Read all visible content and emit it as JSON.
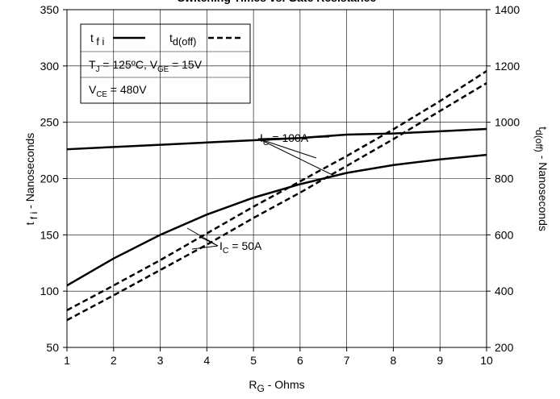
{
  "chart_data": {
    "type": "line",
    "title": "Switching Times vs. Gate Resistance",
    "x": [
      1,
      2,
      3,
      4,
      5,
      6,
      7,
      8,
      9,
      10
    ],
    "xlim": [
      1,
      10
    ],
    "xticks": [
      1,
      2,
      3,
      4,
      5,
      6,
      7,
      8,
      9,
      10
    ],
    "ylim": [
      50,
      350
    ],
    "yticks": [
      50,
      100,
      150,
      200,
      250,
      300,
      350
    ],
    "y2lim": [
      200,
      1400
    ],
    "y2ticks": [
      200,
      400,
      600,
      800,
      1000,
      1200,
      1400
    ],
    "grid": true,
    "xlabel": [
      {
        "t": "R",
        "sub": false
      },
      {
        "t": "G",
        "sub": true
      },
      {
        "t": " - Ohms",
        "sub": false
      }
    ],
    "ylabel": [
      {
        "t": "t",
        "sub": false
      },
      {
        "t": " f i",
        "sub": true
      },
      {
        "t": " - Nanoseconds",
        "sub": false
      }
    ],
    "y2label": [
      {
        "t": "t",
        "sub": false
      },
      {
        "t": "d(off)",
        "sub": true
      },
      {
        "t": " - Nanoseconds",
        "sub": false
      }
    ],
    "legend": [
      {
        "parts": [
          {
            "t": "t",
            "sub": false
          },
          {
            "t": " f i",
            "sub": true
          }
        ],
        "style": "solid"
      },
      {
        "parts": [
          {
            "t": "t",
            "sub": false
          },
          {
            "t": "d(off)",
            "sub": true
          }
        ],
        "style": "dashed"
      }
    ],
    "conditions": [
      [
        {
          "t": "T",
          "sub": false
        },
        {
          "t": "J",
          "sub": true
        },
        {
          "t": " = 125ºC,  V",
          "sub": false
        },
        {
          "t": "GE",
          "sub": true
        },
        {
          "t": " = 15V",
          "sub": false
        }
      ],
      [
        {
          "t": "V",
          "sub": false
        },
        {
          "t": "CE",
          "sub": true
        },
        {
          "t": " = 480V",
          "sub": false
        }
      ]
    ],
    "annotations": [
      [
        {
          "t": "I",
          "sub": false
        },
        {
          "t": "C",
          "sub": true
        },
        {
          "t": " = 100A",
          "sub": false
        }
      ],
      [
        {
          "t": "I",
          "sub": false
        },
        {
          "t": "C",
          "sub": true
        },
        {
          "t": " = 50A",
          "sub": false
        }
      ]
    ],
    "series": [
      {
        "style": "solid",
        "axis": "y",
        "color": "#000000",
        "values": [
          226,
          228,
          230,
          232,
          234,
          236,
          239,
          240,
          242,
          244
        ]
      },
      {
        "style": "solid",
        "axis": "y",
        "color": "#000000",
        "values": [
          105,
          129,
          150,
          168,
          183,
          195,
          205,
          212,
          217,
          221
        ]
      },
      {
        "style": "dashed",
        "axis": "y2",
        "color": "#000000",
        "values": [
          332,
          420,
          510,
          605,
          700,
          790,
          880,
          975,
          1075,
          1182
        ]
      },
      {
        "style": "dashed",
        "axis": "y2",
        "color": "#000000",
        "values": [
          297,
          385,
          475,
          565,
          660,
          750,
          845,
          940,
          1040,
          1139
        ]
      }
    ]
  }
}
